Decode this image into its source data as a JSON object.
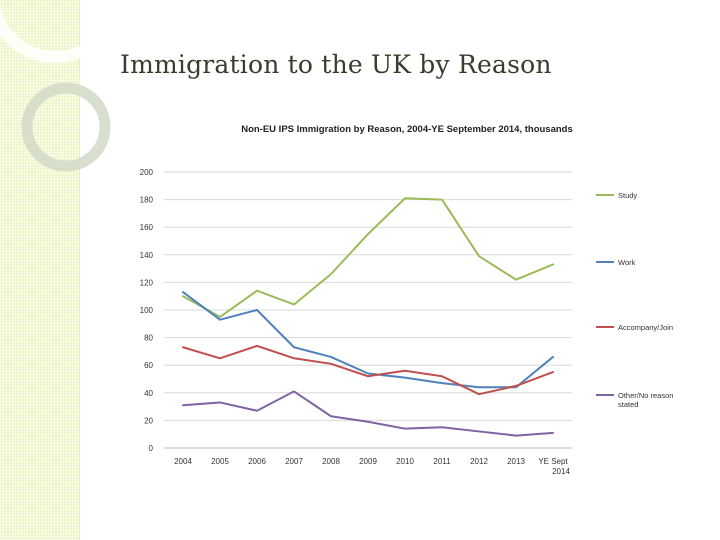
{
  "slide": {
    "title": "Immigration to the UK by Reason"
  },
  "chart_data": {
    "type": "line",
    "title": "Non-EU IPS Immigration by Reason, 2004-YE September 2014, thousands",
    "xlabel": "",
    "ylabel": "",
    "categories": [
      "2004",
      "2005",
      "2006",
      "2007",
      "2008",
      "2009",
      "2010",
      "2011",
      "2012",
      "2013",
      "YE Sept 2014"
    ],
    "ylim": [
      0,
      200
    ],
    "yticks": [
      0,
      20,
      40,
      60,
      80,
      100,
      120,
      140,
      160,
      180,
      200
    ],
    "grid": true,
    "legend_position": "right",
    "series": [
      {
        "name": "Study",
        "color": "#9bbb59",
        "values": [
          110,
          95,
          114,
          104,
          126,
          155,
          181,
          180,
          139,
          122,
          133
        ]
      },
      {
        "name": "Work",
        "color": "#4f81bd",
        "values": [
          113,
          93,
          100,
          73,
          66,
          54,
          51,
          47,
          44,
          44,
          66
        ]
      },
      {
        "name": "Accompany/Join",
        "color": "#c0504d",
        "values": [
          73,
          65,
          74,
          65,
          61,
          52,
          56,
          52,
          39,
          45,
          55
        ]
      },
      {
        "name": "Other/No reason stated",
        "color": "#8064a2",
        "values": [
          31,
          33,
          27,
          41,
          23,
          19,
          14,
          15,
          12,
          9,
          11
        ]
      }
    ]
  }
}
